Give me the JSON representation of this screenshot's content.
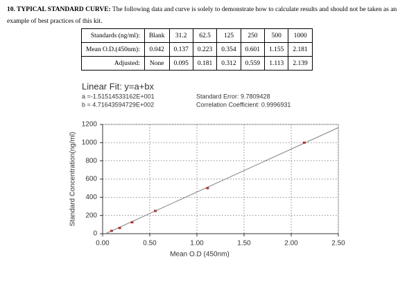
{
  "heading": {
    "title": "10. TYPICAL STANDARD CURVE:",
    "text": "The following data and curve is solely to demonstrate how to calculate results and should not be taken as an example of best practices of this kit."
  },
  "table": {
    "rows": [
      [
        "Standards (ng/ml):",
        "Blank",
        "31.2",
        "62.5",
        "125",
        "250",
        "500",
        "1000"
      ],
      [
        "Mean O.D.(450nm):",
        "0.042",
        "0.137",
        "0.223",
        "0.354",
        "0.601",
        "1.155",
        "2.181"
      ],
      [
        "Adjusted:",
        "None",
        "0.095",
        "0.181",
        "0.312",
        "0.559",
        "1.113",
        "2.139"
      ]
    ]
  },
  "chart_data": {
    "type": "scatter",
    "title": "Linear Fit: y=a+bx",
    "annotations": [
      "a =-1.51514533162E+001",
      "b = 4.71643594729E+002",
      "Standard Error: 9.7809428",
      "Correlation Coefficient: 0.9996931"
    ],
    "x_label": "Mean O.D (450nm)",
    "y_label": "Standard Concentration(ng/ml)",
    "x": [
      0.095,
      0.181,
      0.312,
      0.559,
      1.113,
      2.139
    ],
    "values": [
      31.2,
      62.5,
      125,
      250,
      500,
      1000
    ],
    "color": "#b03030",
    "fit_line": {
      "x": [
        0.03,
        2.5
      ],
      "values": [
        0,
        1165
      ],
      "color": "#808080"
    },
    "xlim": [
      0,
      2.5
    ],
    "xticks": [
      {
        "value": 0,
        "label": "0.00"
      },
      {
        "value": 0.5,
        "label": "0.50"
      },
      {
        "value": 1,
        "label": "1.00"
      },
      {
        "value": 1.5,
        "label": "1.50"
      },
      {
        "value": 2,
        "label": "2.00"
      },
      {
        "value": 2.5,
        "label": "2.50"
      }
    ],
    "ylim": [
      0,
      1200
    ],
    "yticks": [
      0,
      200,
      400,
      600,
      800,
      1000,
      1200
    ],
    "grid": true
  }
}
